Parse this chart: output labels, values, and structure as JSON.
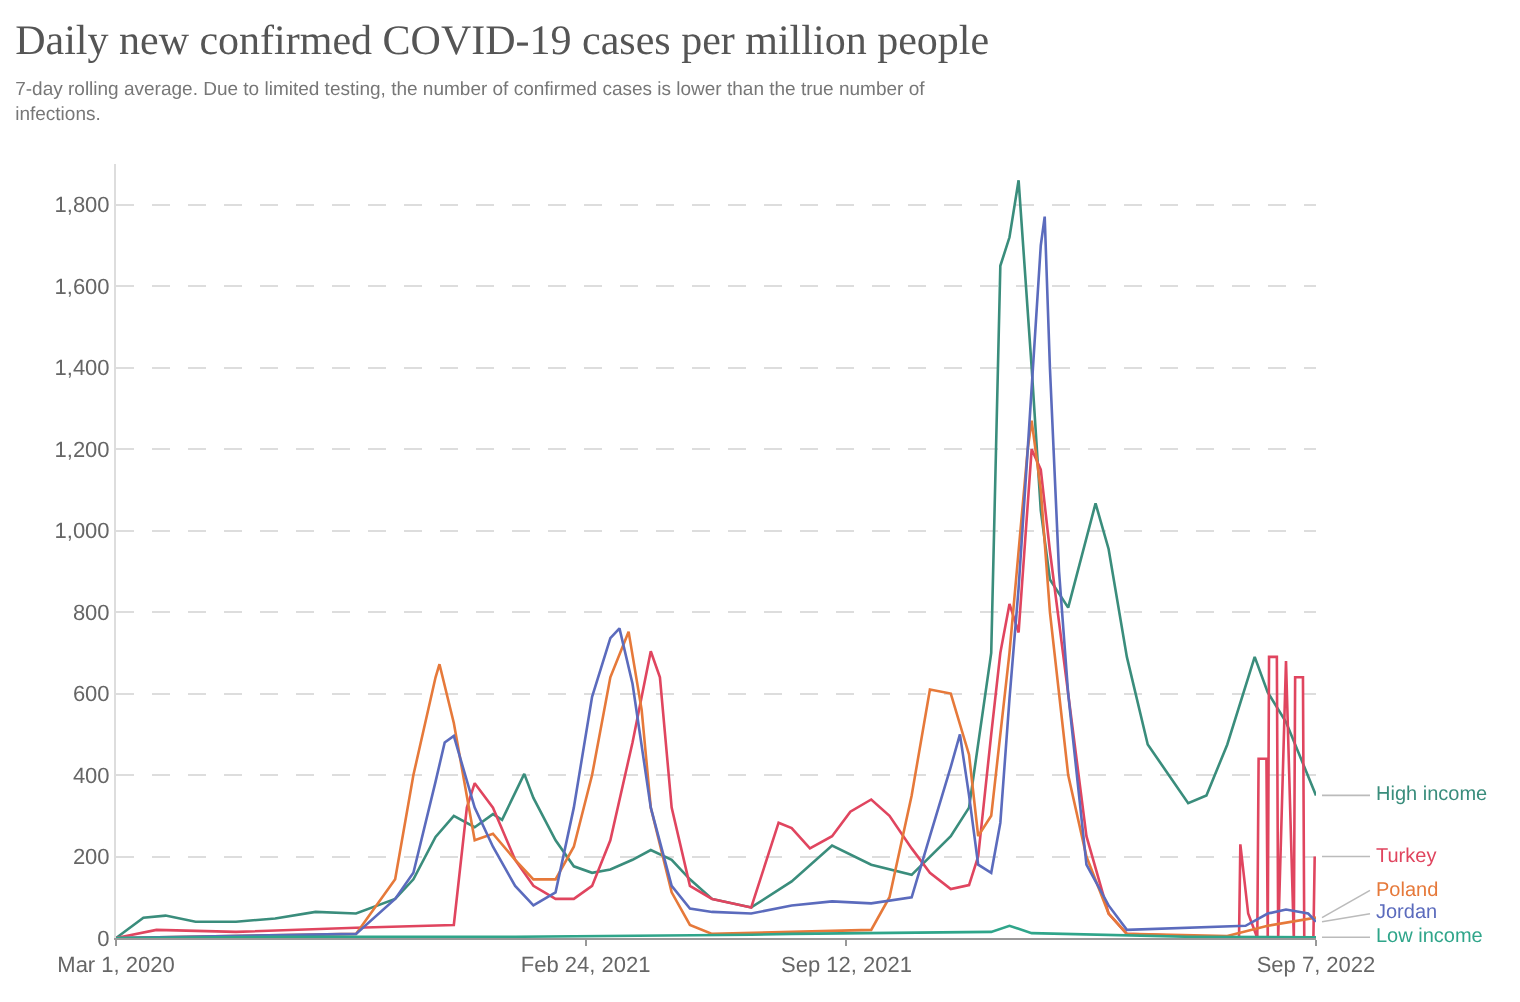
{
  "chart_data": {
    "type": "line",
    "title": "Daily new confirmed COVID-19 cases per million people",
    "subtitle": "7-day rolling average. Due to limited testing, the number of confirmed cases is lower than the true number of infections.",
    "xlim": [
      "2020-03-01",
      "2022-09-07"
    ],
    "ylim": [
      0,
      1900
    ],
    "xticks": [
      {
        "value": "2020-03-01",
        "label": "Mar 1, 2020"
      },
      {
        "value": "2021-02-24",
        "label": "Feb 24, 2021"
      },
      {
        "value": "2021-09-12",
        "label": "Sep 12, 2021"
      },
      {
        "value": "2022-09-07",
        "label": "Sep 7, 2022"
      }
    ],
    "yticks": [
      0,
      200,
      400,
      600,
      800,
      {
        "value": 1000,
        "label": "1,000"
      },
      {
        "value": 1200,
        "label": "1,200"
      },
      {
        "value": 1400,
        "label": "1,400"
      },
      {
        "value": 1600,
        "label": "1,600"
      },
      {
        "value": 1800,
        "label": "1,800"
      }
    ],
    "grid": "y",
    "legend": false,
    "marker": "none",
    "line_style": "solid",
    "series": [
      {
        "name": "High income",
        "color": "#3a8d7c",
        "x": [
          "2020-03-01",
          "2020-03-22",
          "2020-04-08",
          "2020-05-01",
          "2020-06-01",
          "2020-07-01",
          "2020-08-01",
          "2020-09-01",
          "2020-10-01",
          "2020-10-15",
          "2020-11-01",
          "2020-11-15",
          "2020-12-01",
          "2020-12-15",
          "2020-12-22",
          "2021-01-08",
          "2021-01-15",
          "2021-02-01",
          "2021-02-15",
          "2021-03-01",
          "2021-03-15",
          "2021-04-01",
          "2021-04-15",
          "2021-05-01",
          "2021-05-15",
          "2021-06-01",
          "2021-07-01",
          "2021-08-01",
          "2021-09-01",
          "2021-10-01",
          "2021-11-01",
          "2021-12-01",
          "2021-12-15",
          "2022-01-01",
          "2022-01-08",
          "2022-01-15",
          "2022-01-22",
          "2022-02-01",
          "2022-02-08",
          "2022-02-15",
          "2022-03-01",
          "2022-03-22",
          "2022-04-01",
          "2022-04-15",
          "2022-05-01",
          "2022-05-15",
          "2022-06-01",
          "2022-06-15",
          "2022-07-01",
          "2022-07-22",
          "2022-08-01",
          "2022-08-15",
          "2022-09-07"
        ],
        "values": [
          0,
          50,
          55,
          40,
          40,
          48,
          64,
          60,
          96,
          144,
          248,
          300,
          272,
          304,
          290,
          403,
          344,
          240,
          176,
          160,
          168,
          192,
          216,
          192,
          144,
          96,
          75,
          139,
          227,
          180,
          155,
          250,
          320,
          700,
          1650,
          1720,
          1860,
          1400,
          1050,
          880,
          811,
          1067,
          955,
          690,
          475,
          410,
          331,
          350,
          475,
          690,
          603,
          530,
          350
        ]
      },
      {
        "name": "Turkey",
        "color": "#e0455f",
        "x": [
          "2020-03-01",
          "2020-04-01",
          "2020-06-01",
          "2020-09-01",
          "2020-11-15",
          "2020-11-25",
          "2020-12-01",
          "2020-12-15",
          "2021-01-01",
          "2021-01-15",
          "2021-02-01",
          "2021-02-15",
          "2021-03-01",
          "2021-03-15",
          "2021-04-01",
          "2021-04-15",
          "2021-04-22",
          "2021-05-01",
          "2021-05-15",
          "2021-06-01",
          "2021-07-01",
          "2021-07-22",
          "2021-08-01",
          "2021-08-15",
          "2021-09-01",
          "2021-09-15",
          "2021-10-01",
          "2021-10-15",
          "2021-11-01",
          "2021-11-15",
          "2021-12-01",
          "2021-12-15",
          "2021-12-22",
          "2022-01-01",
          "2022-01-08",
          "2022-01-15",
          "2022-01-22",
          "2022-02-01",
          "2022-02-08",
          "2022-02-15",
          "2022-03-01",
          "2022-03-15",
          "2022-04-01",
          "2022-04-15",
          "2022-07-10",
          "2022-07-11",
          "2022-07-17",
          "2022-07-24",
          "2022-07-25",
          "2022-07-31",
          "2022-08-01",
          "2022-08-02",
          "2022-08-08",
          "2022-08-09",
          "2022-08-15",
          "2022-08-21",
          "2022-08-22",
          "2022-08-28",
          "2022-08-29",
          "2022-09-05",
          "2022-09-06"
        ],
        "values": [
          0,
          20,
          15,
          25,
          32,
          320,
          380,
          320,
          192,
          128,
          96,
          96,
          128,
          240,
          480,
          704,
          640,
          320,
          128,
          96,
          75,
          283,
          270,
          220,
          250,
          310,
          340,
          300,
          220,
          160,
          120,
          130,
          200,
          500,
          700,
          820,
          750,
          1200,
          1150,
          950,
          600,
          250,
          60,
          10,
          0,
          230,
          60,
          0,
          440,
          440,
          0,
          690,
          690,
          0,
          680,
          0,
          640,
          640,
          0,
          0,
          200
        ]
      },
      {
        "name": "Poland",
        "color": "#e6793a",
        "x": [
          "2020-03-01",
          "2020-09-01",
          "2020-10-01",
          "2020-10-15",
          "2020-11-01",
          "2020-11-04",
          "2020-11-15",
          "2020-12-01",
          "2020-12-15",
          "2021-01-01",
          "2021-01-15",
          "2021-02-01",
          "2021-02-15",
          "2021-03-01",
          "2021-03-15",
          "2021-03-29",
          "2021-04-08",
          "2021-04-15",
          "2021-05-01",
          "2021-05-15",
          "2021-06-01",
          "2021-10-01",
          "2021-10-15",
          "2021-11-01",
          "2021-11-15",
          "2021-12-01",
          "2021-12-15",
          "2021-12-22",
          "2022-01-01",
          "2022-01-15",
          "2022-01-29",
          "2022-02-01",
          "2022-02-08",
          "2022-02-15",
          "2022-03-01",
          "2022-03-15",
          "2022-04-01",
          "2022-04-15",
          "2022-07-01",
          "2022-08-01",
          "2022-09-07"
        ],
        "values": [
          0,
          10,
          144,
          400,
          640,
          672,
          528,
          240,
          256,
          192,
          144,
          144,
          224,
          400,
          640,
          752,
          560,
          320,
          112,
          32,
          10,
          20,
          100,
          350,
          610,
          600,
          450,
          250,
          300,
          700,
          1200,
          1270,
          1100,
          800,
          400,
          200,
          60,
          10,
          5,
          30,
          50
        ]
      },
      {
        "name": "Jordan",
        "color": "#5b6bbd",
        "x": [
          "2020-03-01",
          "2020-09-01",
          "2020-10-01",
          "2020-10-15",
          "2020-11-01",
          "2020-11-08",
          "2020-11-15",
          "2020-12-01",
          "2020-12-15",
          "2021-01-01",
          "2021-01-15",
          "2021-02-01",
          "2021-02-15",
          "2021-03-01",
          "2021-03-15",
          "2021-03-22",
          "2021-04-01",
          "2021-04-15",
          "2021-05-01",
          "2021-05-15",
          "2021-06-01",
          "2021-07-01",
          "2021-08-01",
          "2021-09-01",
          "2021-10-01",
          "2021-11-01",
          "2021-11-15",
          "2021-12-01",
          "2021-12-08",
          "2021-12-15",
          "2021-12-22",
          "2022-01-01",
          "2022-01-08",
          "2022-01-15",
          "2022-01-22",
          "2022-01-29",
          "2022-02-08",
          "2022-02-11",
          "2022-02-15",
          "2022-02-22",
          "2022-03-01",
          "2022-03-15",
          "2022-04-01",
          "2022-04-15",
          "2022-07-15",
          "2022-08-01",
          "2022-08-15",
          "2022-09-01",
          "2022-09-07"
        ],
        "values": [
          0,
          10,
          96,
          160,
          384,
          480,
          496,
          320,
          224,
          128,
          80,
          112,
          320,
          592,
          736,
          760,
          624,
          320,
          128,
          72,
          64,
          60,
          80,
          90,
          85,
          100,
          250,
          420,
          500,
          350,
          180,
          160,
          283,
          587,
          859,
          1200,
          1700,
          1771,
          1400,
          900,
          600,
          180,
          80,
          20,
          30,
          60,
          70,
          60,
          40
        ]
      },
      {
        "name": "Low income",
        "color": "#2fa58a",
        "x": [
          "2020-03-01",
          "2020-07-01",
          "2021-01-01",
          "2021-07-01",
          "2021-08-01",
          "2022-01-01",
          "2022-01-15",
          "2022-02-01",
          "2022-06-01",
          "2022-09-07"
        ],
        "values": [
          0,
          3,
          3,
          8,
          10,
          15,
          30,
          12,
          3,
          2
        ]
      }
    ]
  }
}
